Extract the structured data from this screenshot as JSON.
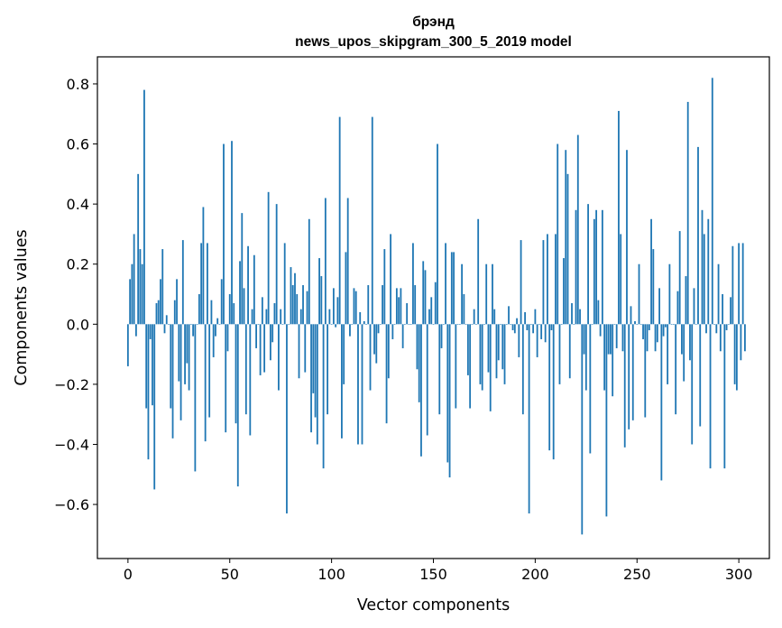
{
  "chart_data": {
    "type": "bar",
    "title": "брэнд",
    "subtitle": "news_upos_skipgram_300_5_2019 model",
    "xlabel": "Vector components",
    "ylabel": "Components values",
    "xlim": [
      -15,
      315
    ],
    "ylim": [
      -0.78,
      0.89
    ],
    "xticks": [
      0,
      50,
      100,
      150,
      200,
      250,
      300
    ],
    "xtick_labels": [
      "0",
      "50",
      "100",
      "150",
      "200",
      "250",
      "300"
    ],
    "yticks": [
      -0.6,
      -0.4,
      -0.2,
      0.0,
      0.2,
      0.4,
      0.6,
      0.8
    ],
    "ytick_labels": [
      "−0.6",
      "−0.4",
      "−0.2",
      "0.0",
      "0.2",
      "0.4",
      "0.6",
      "0.8"
    ],
    "bar_color": "#1f77b4",
    "grid": false,
    "values": [
      -0.14,
      0.15,
      0.2,
      0.3,
      -0.04,
      0.5,
      0.25,
      0.2,
      0.78,
      -0.28,
      -0.45,
      -0.05,
      -0.27,
      -0.55,
      0.07,
      0.08,
      0.15,
      0.25,
      -0.03,
      0.03,
      0.0,
      -0.28,
      -0.38,
      0.08,
      0.15,
      -0.19,
      -0.32,
      0.28,
      -0.2,
      -0.13,
      -0.22,
      0.0,
      -0.04,
      -0.49,
      0.0,
      0.1,
      0.27,
      0.39,
      -0.39,
      0.27,
      -0.31,
      0.08,
      -0.11,
      -0.04,
      0.02,
      0.0,
      0.15,
      0.6,
      -0.36,
      -0.09,
      0.1,
      0.61,
      0.07,
      -0.33,
      -0.54,
      0.21,
      0.37,
      0.12,
      -0.3,
      0.26,
      -0.37,
      0.05,
      0.23,
      -0.08,
      0.0,
      -0.17,
      0.09,
      -0.16,
      0.05,
      0.44,
      -0.12,
      -0.06,
      0.07,
      0.4,
      -0.22,
      0.05,
      0.0,
      0.27,
      -0.63,
      0.0,
      0.19,
      0.13,
      0.17,
      0.1,
      -0.18,
      0.05,
      0.13,
      -0.16,
      0.11,
      0.35,
      -0.36,
      -0.23,
      -0.31,
      -0.4,
      0.22,
      0.16,
      -0.48,
      0.42,
      -0.3,
      0.05,
      0.0,
      0.12,
      -0.01,
      0.09,
      0.69,
      -0.38,
      -0.2,
      0.24,
      0.42,
      -0.04,
      0.0,
      0.12,
      0.11,
      -0.4,
      0.04,
      -0.4,
      0.01,
      0.0,
      0.13,
      -0.22,
      0.69,
      -0.1,
      -0.13,
      -0.03,
      0.0,
      0.13,
      0.25,
      -0.33,
      -0.18,
      0.3,
      -0.05,
      0.0,
      0.12,
      0.09,
      0.12,
      -0.08,
      0.0,
      0.07,
      0.0,
      0.0,
      0.27,
      0.13,
      -0.15,
      -0.26,
      -0.44,
      0.21,
      0.18,
      -0.37,
      0.05,
      0.09,
      0.0,
      0.14,
      0.6,
      -0.3,
      -0.08,
      0.0,
      0.27,
      -0.46,
      -0.51,
      0.24,
      0.24,
      -0.28,
      0.0,
      0.0,
      0.2,
      0.1,
      0.0,
      -0.17,
      -0.28,
      0.0,
      0.05,
      0.0,
      0.35,
      -0.2,
      -0.22,
      0.0,
      0.2,
      -0.16,
      -0.29,
      0.2,
      0.05,
      -0.18,
      -0.12,
      0.0,
      -0.15,
      -0.2,
      0.0,
      0.06,
      0.0,
      -0.02,
      -0.03,
      0.02,
      -0.11,
      0.28,
      -0.3,
      0.04,
      -0.02,
      -0.63,
      0.0,
      -0.03,
      0.05,
      -0.11,
      0.0,
      -0.05,
      0.28,
      -0.06,
      0.3,
      -0.42,
      -0.02,
      -0.45,
      0.3,
      0.6,
      -0.2,
      0.0,
      0.22,
      0.58,
      0.5,
      -0.18,
      0.07,
      0.0,
      0.38,
      0.63,
      0.05,
      -0.7,
      -0.1,
      -0.22,
      0.4,
      -0.43,
      0.0,
      0.35,
      0.38,
      0.08,
      -0.04,
      0.38,
      -0.22,
      -0.64,
      -0.1,
      -0.1,
      -0.24,
      0.0,
      -0.08,
      0.71,
      0.3,
      -0.09,
      -0.41,
      0.58,
      -0.35,
      0.06,
      -0.32,
      0.01,
      0.0,
      0.2,
      0.0,
      -0.05,
      -0.31,
      -0.09,
      -0.02,
      0.35,
      0.25,
      -0.09,
      -0.06,
      0.12,
      -0.52,
      -0.04,
      -0.01,
      -0.2,
      0.2,
      0.0,
      0.0,
      -0.3,
      0.11,
      0.31,
      -0.1,
      -0.19,
      0.16,
      0.74,
      -0.12,
      -0.4,
      0.12,
      0.0,
      0.59,
      -0.34,
      0.38,
      0.3,
      -0.03,
      0.35,
      -0.48,
      0.82,
      0.0,
      -0.03,
      0.2,
      -0.09,
      0.1,
      -0.48,
      -0.02,
      0.0,
      0.09,
      0.26,
      -0.2,
      -0.22,
      0.27,
      -0.12,
      0.27,
      -0.09
    ]
  }
}
